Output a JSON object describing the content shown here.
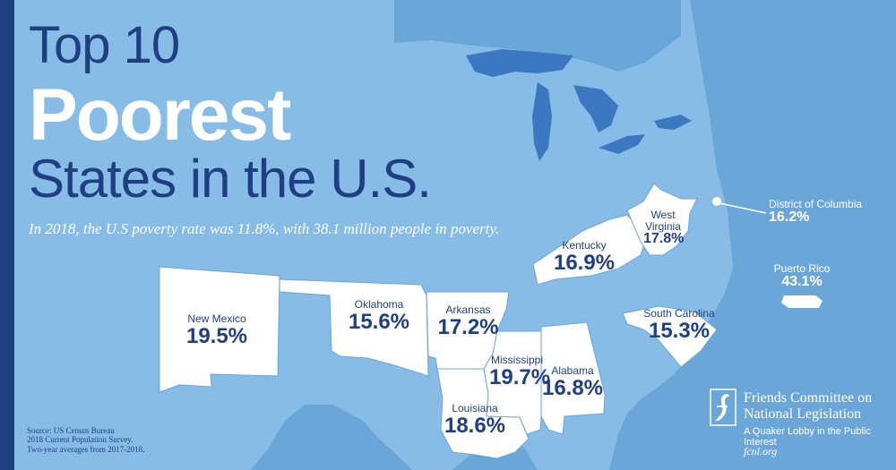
{
  "title": {
    "line1": "Top 10",
    "line2": "Poorest",
    "line3": "States in the U.S."
  },
  "subtitle": "In 2018, the U.S poverty rate was 11.8%, with 38.1 million people in poverty.",
  "states": [
    {
      "name": "New Mexico",
      "rate": "19.5%"
    },
    {
      "name": "Oklahoma",
      "rate": "15.6%"
    },
    {
      "name": "Arkansas",
      "rate": "17.2%"
    },
    {
      "name": "Louisiana",
      "rate": "18.6%"
    },
    {
      "name": "Mississippi",
      "rate": "19.7%"
    },
    {
      "name": "Alabama",
      "rate": "16.8%"
    },
    {
      "name": "Kentucky",
      "rate": "16.9%"
    },
    {
      "name": "West Virginia",
      "rate": "17.8%"
    },
    {
      "name": "South Carolina",
      "rate": "15.3%"
    },
    {
      "name": "District of Columbia",
      "rate": "16.2%"
    },
    {
      "name": "Puerto Rico",
      "rate": "43.1%"
    }
  ],
  "source": {
    "line1": "Source: US Census Bureau",
    "line2": "2018 Current Population Survey.",
    "line3": "Two-year averages from 2017-2018."
  },
  "org": {
    "name_line1": "Friends Committee on",
    "name_line2": "National Legislation",
    "tagline": "A Quaker Lobby in the Public Interest",
    "url": "fcnl.org"
  },
  "colors": {
    "ocean": "#6aa6d8",
    "land": "#86bce6",
    "highlight": "#ffffff",
    "navy": "#1f3f82",
    "lake": "#3a78c2"
  }
}
